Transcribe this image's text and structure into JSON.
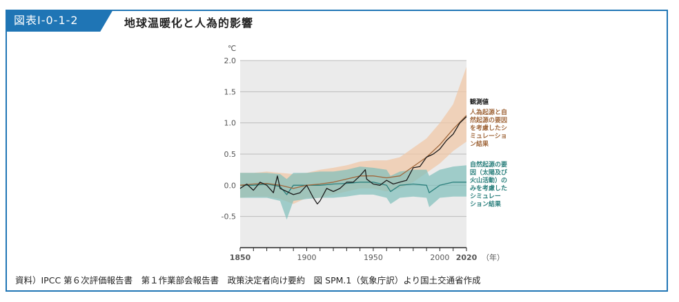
{
  "header": {
    "figure_id": "図表Ⅰ-0-1-2",
    "title": "地球温暖化と人為的影響"
  },
  "source_note": "資料）IPCC 第６次評価報告書　第１作業部会報告書　政策決定者向け要約　図 SPM.1（気象庁訳）より国土交通省作成",
  "colors": {
    "border": "#1f75b5",
    "observed": "#1a1a1a",
    "human_natural": "#a0673b",
    "human_natural_band": "#f0c8a8",
    "natural_only": "#2a7f7c",
    "natural_only_band": "#7fbfbb",
    "plot_bg": "#ebebeb"
  },
  "chart_data": {
    "type": "line",
    "title": "",
    "xlabel": "（年）",
    "ylabel": "℃",
    "xlim": [
      1850,
      2020
    ],
    "ylim": [
      -1.0,
      2.0
    ],
    "x_ticks": [
      "1850",
      "1900",
      "1950",
      "2000",
      "2020"
    ],
    "y_ticks": [
      "2.0",
      "1.5",
      "1.0",
      "0.5",
      "0.0",
      "-0.5"
    ],
    "grid": true,
    "legend_placement": "right",
    "series": [
      {
        "name": "観測値",
        "x": [
          1850,
          1855,
          1860,
          1865,
          1870,
          1875,
          1878,
          1880,
          1885,
          1890,
          1895,
          1900,
          1905,
          1908,
          1910,
          1915,
          1920,
          1925,
          1930,
          1935,
          1940,
          1944,
          1945,
          1950,
          1955,
          1960,
          1965,
          1970,
          1975,
          1980,
          1985,
          1990,
          1995,
          2000,
          2005,
          2010,
          2015,
          2020
        ],
        "y": [
          -0.05,
          0.02,
          -0.08,
          0.05,
          0.0,
          -0.12,
          0.15,
          -0.05,
          -0.1,
          -0.15,
          -0.12,
          0.0,
          -0.2,
          -0.3,
          -0.25,
          -0.05,
          -0.1,
          -0.05,
          0.05,
          0.05,
          0.15,
          0.25,
          0.1,
          0.02,
          0.0,
          0.08,
          0.02,
          0.05,
          0.08,
          0.28,
          0.3,
          0.45,
          0.5,
          0.58,
          0.72,
          0.82,
          1.0,
          1.1
        ]
      },
      {
        "name": "人為起源と自然起源の要因を考慮したシミュレーション結果",
        "x": [
          1850,
          1860,
          1870,
          1880,
          1890,
          1900,
          1910,
          1920,
          1930,
          1940,
          1950,
          1960,
          1970,
          1980,
          1990,
          2000,
          2010,
          2020
        ],
        "y": [
          0.0,
          0.02,
          0.03,
          0.0,
          -0.05,
          0.0,
          0.02,
          0.05,
          0.1,
          0.15,
          0.15,
          0.12,
          0.15,
          0.3,
          0.45,
          0.65,
          0.9,
          1.12
        ],
        "band_low": [
          -0.2,
          -0.18,
          -0.18,
          -0.22,
          -0.3,
          -0.2,
          -0.2,
          -0.15,
          -0.1,
          -0.05,
          -0.05,
          -0.1,
          -0.05,
          0.05,
          0.2,
          0.35,
          0.55,
          0.7
        ],
        "band_high": [
          0.2,
          0.2,
          0.22,
          0.2,
          0.18,
          0.2,
          0.25,
          0.28,
          0.32,
          0.38,
          0.4,
          0.4,
          0.45,
          0.6,
          0.75,
          1.0,
          1.3,
          1.9
        ]
      },
      {
        "name": "自然起源の要因（太陽及び火山活動）のみを考慮したシミュレーション結果",
        "x": [
          1850,
          1860,
          1870,
          1880,
          1885,
          1890,
          1900,
          1910,
          1920,
          1930,
          1940,
          1950,
          1960,
          1963,
          1970,
          1980,
          1990,
          1992,
          2000,
          2010,
          2020
        ],
        "y": [
          0.0,
          0.0,
          0.02,
          -0.02,
          -0.15,
          0.0,
          0.0,
          0.0,
          0.02,
          0.03,
          0.05,
          0.05,
          0.0,
          -0.1,
          0.0,
          0.02,
          0.0,
          -0.12,
          0.0,
          0.05,
          0.05
        ],
        "band_low": [
          -0.2,
          -0.2,
          -0.2,
          -0.25,
          -0.55,
          -0.25,
          -0.22,
          -0.2,
          -0.2,
          -0.18,
          -0.15,
          -0.15,
          -0.2,
          -0.3,
          -0.2,
          -0.18,
          -0.2,
          -0.35,
          -0.2,
          -0.18,
          -0.18
        ],
        "band_high": [
          0.2,
          0.2,
          0.2,
          0.18,
          0.1,
          0.2,
          0.2,
          0.22,
          0.22,
          0.25,
          0.3,
          0.28,
          0.25,
          0.15,
          0.22,
          0.25,
          0.25,
          0.15,
          0.25,
          0.3,
          0.32
        ]
      }
    ],
    "legend": [
      {
        "label": [
          "観測値"
        ]
      },
      {
        "label": [
          "人為起源と自",
          "然起源の要因",
          "を考慮したシ",
          "ミュレーショ",
          "ン結果"
        ]
      },
      {
        "label": [
          "自然起源の要",
          "因（太陽及び",
          "火山活動）の",
          "みを考慮した",
          "シミュレー",
          "ション結果"
        ]
      }
    ]
  }
}
